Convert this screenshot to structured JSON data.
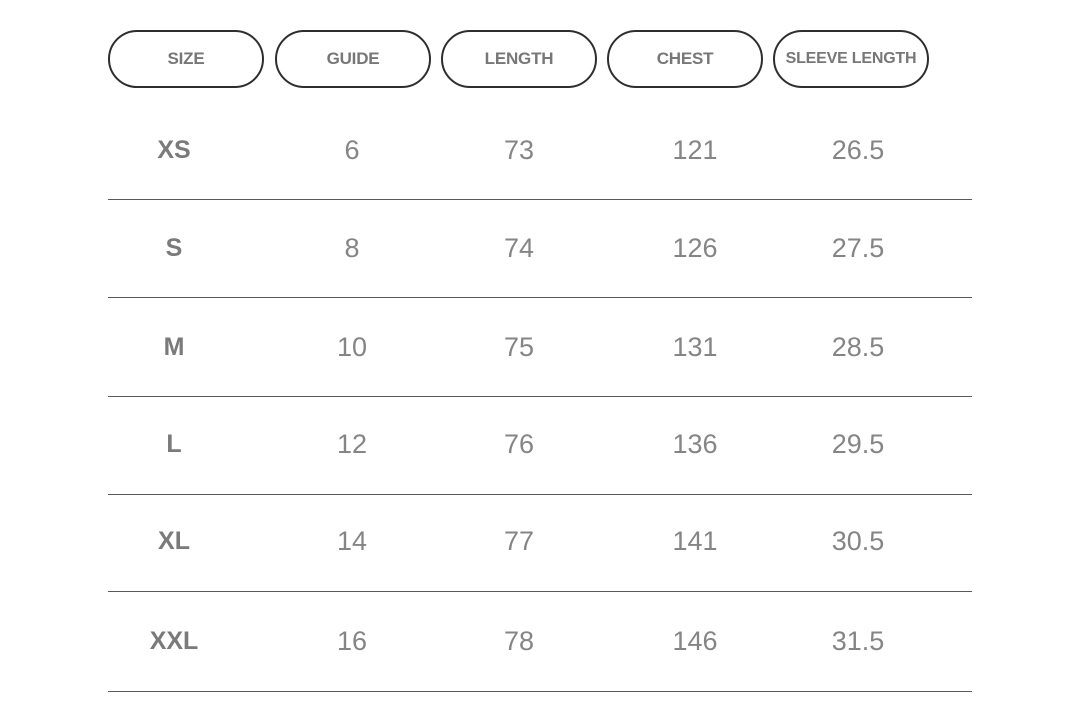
{
  "table": {
    "headers": [
      "SIZE",
      "GUIDE",
      "LENGTH",
      "CHEST",
      "SLEEVE LENGTH"
    ],
    "rows": [
      [
        "XS",
        6,
        73,
        121,
        26.5
      ],
      [
        "S",
        8,
        74,
        126,
        27.5
      ],
      [
        "M",
        10,
        75,
        131,
        28.5
      ],
      [
        "L",
        12,
        76,
        136,
        29.5
      ],
      [
        "XL",
        14,
        77,
        141,
        30.5
      ],
      [
        "XXL",
        16,
        78,
        146,
        31.5
      ]
    ]
  }
}
